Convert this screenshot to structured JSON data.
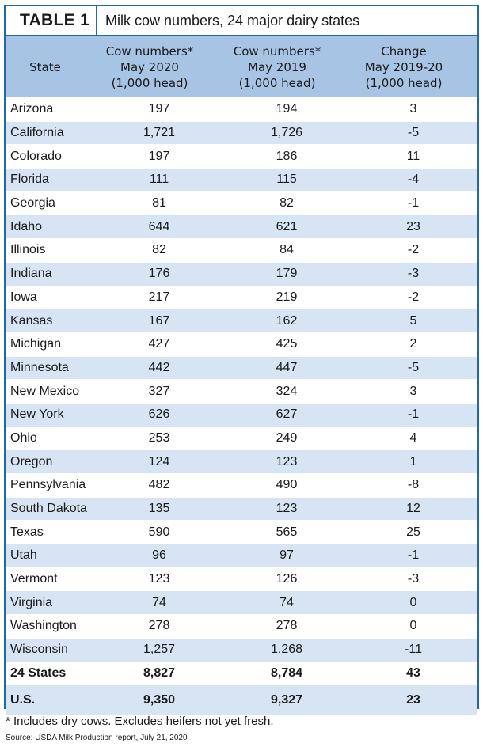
{
  "header": {
    "table_label": "TABLE 1",
    "title": "Milk cow numbers, 24 major dairy states"
  },
  "columns": [
    "State",
    "Cow numbers*\nMay 2020\n(1,000 head)",
    "Cow numbers*\nMay 2019\n(1,000 head)",
    "Change\nMay 2019-20\n(1,000 head)"
  ],
  "rows": [
    [
      "Arizona",
      "197",
      "194",
      "3"
    ],
    [
      "California",
      "1,721",
      "1,726",
      "-5"
    ],
    [
      "Colorado",
      "197",
      "186",
      "11"
    ],
    [
      "Florida",
      "111",
      "115",
      "-4"
    ],
    [
      "Georgia",
      "81",
      "82",
      "-1"
    ],
    [
      "Idaho",
      "644",
      "621",
      "23"
    ],
    [
      "Illinois",
      "82",
      "84",
      "-2"
    ],
    [
      "Indiana",
      "176",
      "179",
      "-3"
    ],
    [
      "Iowa",
      "217",
      "219",
      "-2"
    ],
    [
      "Kansas",
      "167",
      "162",
      "5"
    ],
    [
      "Michigan",
      "427",
      "425",
      "2"
    ],
    [
      "Minnesota",
      "442",
      "447",
      "-5"
    ],
    [
      "New Mexico",
      "327",
      "324",
      "3"
    ],
    [
      "New York",
      "626",
      "627",
      "-1"
    ],
    [
      "Ohio",
      "253",
      "249",
      "4"
    ],
    [
      "Oregon",
      "124",
      "123",
      "1"
    ],
    [
      "Pennsylvania",
      "482",
      "490",
      "-8"
    ],
    [
      "South Dakota",
      "135",
      "123",
      "12"
    ],
    [
      "Texas",
      "590",
      "565",
      "25"
    ],
    [
      "Utah",
      "96",
      "97",
      "-1"
    ],
    [
      "Vermont",
      "123",
      "126",
      "-3"
    ],
    [
      "Virginia",
      "74",
      "74",
      "0"
    ],
    [
      "Washington",
      "278",
      "278",
      "0"
    ],
    [
      "Wisconsin",
      "1,257",
      "1,268",
      "-11"
    ]
  ],
  "total_row": [
    "24 States",
    "8,827",
    "8,784",
    "43"
  ],
  "us_row": [
    "U.S.",
    "9,350",
    "9,327",
    "23"
  ],
  "footnote": "* Includes dry cows. Excludes heifers not yet fresh.",
  "source": "Source: USDA Milk Production report, July 21, 2020",
  "colors": {
    "border": "#1f6aa0",
    "header_bg": "#a8c4e4",
    "stripe_bg": "#d6e4f4"
  }
}
